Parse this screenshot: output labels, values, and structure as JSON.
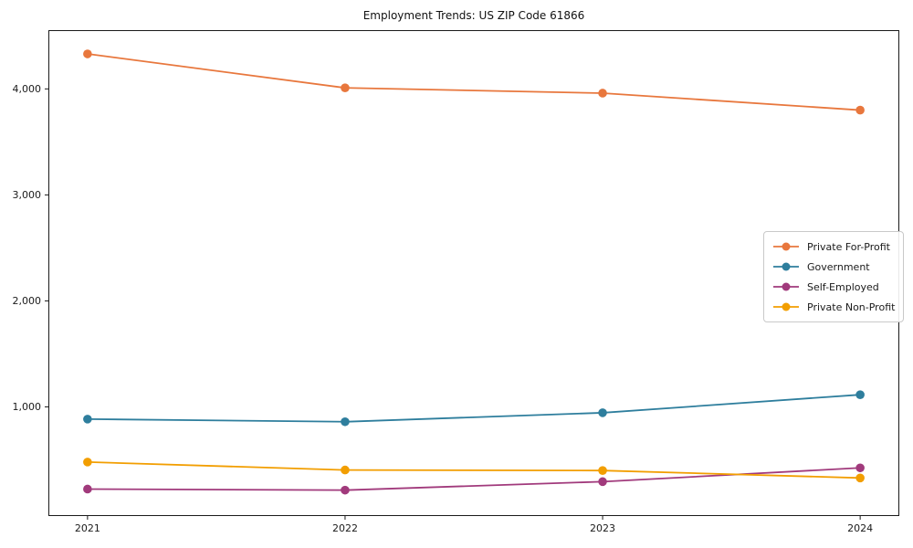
{
  "chart_data": {
    "type": "line",
    "title": "Employment Trends: US ZIP Code 61866",
    "xlabel": "",
    "ylabel": "",
    "categories": [
      "2021",
      "2022",
      "2023",
      "2024"
    ],
    "series": [
      {
        "name": "Private For-Profit",
        "color": "#e8773d",
        "values": [
          4330,
          4010,
          3960,
          3800
        ]
      },
      {
        "name": "Government",
        "color": "#2e7e9d",
        "values": [
          885,
          860,
          945,
          1115
        ]
      },
      {
        "name": "Self-Employed",
        "color": "#a13a7c",
        "values": [
          225,
          215,
          295,
          425
        ]
      },
      {
        "name": "Private Non-Profit",
        "color": "#f29e01",
        "values": [
          480,
          405,
          400,
          330
        ]
      }
    ],
    "ylim": [
      -25,
      4550
    ],
    "y_ticks": [
      {
        "value": 1000,
        "label": "1,000"
      },
      {
        "value": 2000,
        "label": "2,000"
      },
      {
        "value": 3000,
        "label": "3,000"
      },
      {
        "value": 4000,
        "label": "4,000"
      }
    ],
    "grid": false,
    "marker": "circle",
    "legend_position": "center-right",
    "frame_color": "#1a1a1a",
    "text_color": "#1a1a1a",
    "background_color": "#ffffff"
  }
}
